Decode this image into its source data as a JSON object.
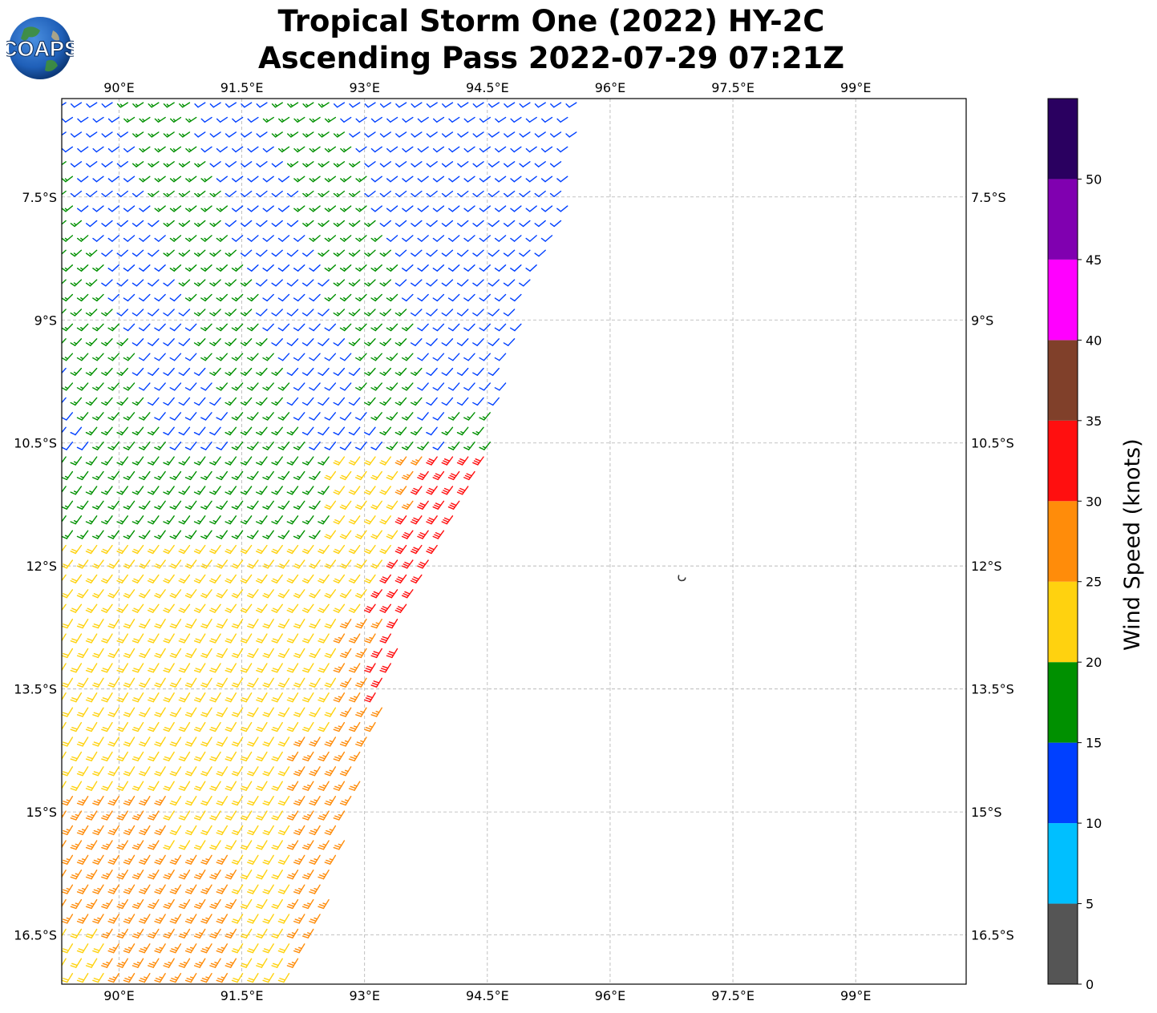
{
  "title": {
    "line1": "Tropical Storm One (2022) HY-2C",
    "line2": "Ascending Pass 2022-07-29 07:21Z"
  },
  "logo": {
    "text": "COAPS",
    "icon": "globe-icon"
  },
  "map": {
    "lon_range": [
      89.3,
      100.35
    ],
    "lat_range": [
      -17.1,
      -6.3
    ],
    "lon_ticks": [
      {
        "value": 90,
        "label": "90°E"
      },
      {
        "value": 91.5,
        "label": "91.5°E"
      },
      {
        "value": 93,
        "label": "93°E"
      },
      {
        "value": 94.5,
        "label": "94.5°E"
      },
      {
        "value": 96,
        "label": "96°E"
      },
      {
        "value": 97.5,
        "label": "97.5°E"
      },
      {
        "value": 99,
        "label": "99°E"
      }
    ],
    "lat_ticks": [
      {
        "value": -7.5,
        "label": "7.5°S"
      },
      {
        "value": -9,
        "label": "9°S"
      },
      {
        "value": -10.5,
        "label": "10.5°S"
      },
      {
        "value": -12,
        "label": "12°S"
      },
      {
        "value": -13.5,
        "label": "13.5°S"
      },
      {
        "value": -15,
        "label": "15°S"
      },
      {
        "value": -16.5,
        "label": "16.5°S"
      }
    ],
    "gridlines": true,
    "swath_edge": [
      {
        "lat": -6.3,
        "lon": 95.65
      },
      {
        "lat": -7.5,
        "lon": 95.55
      },
      {
        "lat": -9.0,
        "lon": 94.95
      },
      {
        "lat": -10.5,
        "lon": 94.55
      },
      {
        "lat": -11.5,
        "lon": 94.05
      },
      {
        "lat": -12.5,
        "lon": 93.6
      },
      {
        "lat": -13.5,
        "lon": 93.3
      },
      {
        "lat": -15.0,
        "lon": 92.85
      },
      {
        "lat": -16.5,
        "lon": 92.45
      },
      {
        "lat": -17.1,
        "lon": 92.1
      }
    ],
    "island": {
      "lat": -12.15,
      "lon": 96.88
    }
  },
  "colorbar": {
    "label": "Wind Speed (knots)",
    "min": 0,
    "max": 55,
    "bins": [
      {
        "from": 0,
        "to": 5,
        "color": "#555555"
      },
      {
        "from": 5,
        "to": 10,
        "color": "#00bfff"
      },
      {
        "from": 10,
        "to": 15,
        "color": "#0040ff"
      },
      {
        "from": 15,
        "to": 20,
        "color": "#009000"
      },
      {
        "from": 20,
        "to": 25,
        "color": "#ffd20f"
      },
      {
        "from": 25,
        "to": 30,
        "color": "#ff8c0a"
      },
      {
        "from": 30,
        "to": 35,
        "color": "#ff0f0f"
      },
      {
        "from": 35,
        "to": 40,
        "color": "#80402a"
      },
      {
        "from": 40,
        "to": 45,
        "color": "#ff00ff"
      },
      {
        "from": 45,
        "to": 50,
        "color": "#8000b0"
      },
      {
        "from": 50,
        "to": 55,
        "color": "#2a0060"
      }
    ],
    "tick_labels": [
      "0",
      "5",
      "10",
      "15",
      "20",
      "25",
      "30",
      "35",
      "40",
      "45",
      "50"
    ]
  },
  "wind_barbs": {
    "grid_spacing_deg": 0.18,
    "regions": [
      {
        "speed_kt": 25,
        "direction": "southeast",
        "area": "southwest swath"
      },
      {
        "speed_kt": 20,
        "direction": "southeast",
        "area": "south-central swath"
      },
      {
        "speed_kt": 15,
        "direction": "southeast",
        "area": "west-central swath"
      },
      {
        "speed_kt": 15,
        "direction": "east-southeast",
        "area": "western swath north of 11S"
      },
      {
        "speed_kt": 10,
        "direction": "east",
        "area": "central and eastern swath north of 10.5S"
      },
      {
        "speed_kt": 30,
        "direction": "east",
        "area": "eastern edge near 12S"
      }
    ]
  }
}
